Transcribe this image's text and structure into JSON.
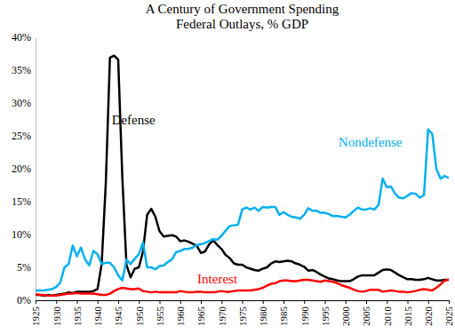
{
  "chart_data": {
    "type": "line",
    "title": "A Century of Government Spending",
    "subtitle": "Federal Outlays, % GDP",
    "x": [
      1925,
      1926,
      1927,
      1928,
      1929,
      1930,
      1931,
      1932,
      1933,
      1934,
      1935,
      1936,
      1937,
      1938,
      1939,
      1940,
      1941,
      1942,
      1943,
      1944,
      1945,
      1946,
      1947,
      1948,
      1949,
      1950,
      1951,
      1952,
      1953,
      1954,
      1955,
      1956,
      1957,
      1958,
      1959,
      1960,
      1961,
      1962,
      1963,
      1964,
      1965,
      1966,
      1967,
      1968,
      1969,
      1970,
      1971,
      1972,
      1973,
      1974,
      1975,
      1976,
      1977,
      1978,
      1979,
      1980,
      1981,
      1982,
      1983,
      1984,
      1985,
      1986,
      1987,
      1988,
      1989,
      1990,
      1991,
      1992,
      1993,
      1994,
      1995,
      1996,
      1997,
      1998,
      1999,
      2000,
      2001,
      2002,
      2003,
      2004,
      2005,
      2006,
      2007,
      2008,
      2009,
      2010,
      2011,
      2012,
      2013,
      2014,
      2015,
      2016,
      2017,
      2018,
      2019,
      2020,
      2021,
      2022,
      2023,
      2024,
      2025
    ],
    "xlim": [
      1925,
      2025
    ],
    "xticks": [
      1925,
      1930,
      1935,
      1940,
      1945,
      1950,
      1955,
      1960,
      1965,
      1970,
      1975,
      1980,
      1985,
      1990,
      1995,
      2000,
      2005,
      2010,
      2015,
      2020,
      2025
    ],
    "ylim": [
      0,
      40
    ],
    "yticks": [
      {
        "value": 0,
        "label": "0%"
      },
      {
        "value": 5,
        "label": "5%"
      },
      {
        "value": 10,
        "label": "10%"
      },
      {
        "value": 15,
        "label": "15%"
      },
      {
        "value": 20,
        "label": "20%"
      },
      {
        "value": 25,
        "label": "25%"
      },
      {
        "value": 30,
        "label": "30%"
      },
      {
        "value": 35,
        "label": "35%"
      },
      {
        "value": 40,
        "label": "40%"
      }
    ],
    "grid": false,
    "series": [
      {
        "name": "Defense",
        "color": "#000000",
        "values": [
          0.8,
          0.8,
          0.7,
          0.8,
          0.7,
          0.8,
          0.9,
          1.0,
          1.2,
          1.1,
          1.3,
          1.3,
          1.3,
          1.3,
          1.4,
          1.7,
          5.5,
          17.8,
          36.9,
          37.2,
          36.6,
          18.7,
          5.4,
          3.5,
          4.8,
          5.0,
          7.4,
          13.0,
          13.9,
          12.7,
          10.5,
          9.7,
          9.8,
          9.9,
          9.7,
          9.0,
          9.1,
          8.9,
          8.6,
          8.3,
          7.2,
          7.4,
          8.5,
          9.1,
          8.4,
          7.8,
          6.9,
          6.4,
          5.6,
          5.4,
          5.4,
          5.0,
          4.8,
          4.6,
          4.5,
          4.8,
          5.0,
          5.6,
          5.9,
          5.8,
          5.9,
          6.0,
          5.9,
          5.6,
          5.4,
          5.1,
          4.5,
          4.6,
          4.3,
          3.9,
          3.6,
          3.3,
          3.2,
          3.0,
          2.9,
          2.9,
          2.9,
          3.2,
          3.6,
          3.8,
          3.8,
          3.8,
          3.8,
          4.2,
          4.6,
          4.7,
          4.6,
          4.2,
          3.8,
          3.5,
          3.2,
          3.2,
          3.1,
          3.1,
          3.2,
          3.4,
          3.2,
          3.0,
          3.0,
          3.1,
          3.1
        ]
      },
      {
        "name": "Nondefense",
        "color": "#00b0f0",
        "values": [
          1.5,
          1.5,
          1.5,
          1.6,
          1.7,
          2.0,
          2.7,
          5.0,
          5.5,
          8.3,
          6.7,
          8.0,
          6.2,
          5.3,
          7.5,
          7.0,
          5.5,
          5.7,
          5.7,
          5.0,
          3.8,
          3.0,
          6.2,
          5.5,
          6.3,
          7.0,
          8.8,
          5.0,
          5.0,
          4.7,
          5.2,
          5.3,
          5.8,
          6.2,
          7.3,
          7.5,
          7.8,
          7.8,
          8.0,
          8.4,
          8.5,
          8.7,
          9.0,
          9.3,
          9.2,
          9.8,
          10.6,
          11.3,
          11.4,
          11.5,
          13.8,
          14.1,
          13.8,
          14.1,
          13.6,
          14.2,
          14.1,
          14.2,
          14.2,
          13.0,
          13.4,
          13.0,
          12.7,
          12.6,
          12.4,
          13.0,
          14.0,
          13.6,
          13.6,
          13.3,
          13.3,
          13.1,
          12.8,
          12.8,
          12.7,
          12.6,
          13.0,
          13.6,
          14.1,
          13.8,
          13.8,
          14.0,
          13.8,
          14.5,
          18.5,
          17.2,
          17.3,
          16.2,
          15.6,
          15.5,
          15.9,
          16.3,
          16.2,
          15.6,
          16.0,
          26.0,
          25.3,
          20.0,
          18.5,
          18.9,
          18.6
        ]
      },
      {
        "name": "Interest",
        "color": "#ff0000",
        "values": [
          0.9,
          0.8,
          0.8,
          0.7,
          0.7,
          0.7,
          0.8,
          0.9,
          1.0,
          1.0,
          1.1,
          1.0,
          1.0,
          1.0,
          1.0,
          0.9,
          0.8,
          0.8,
          1.0,
          1.4,
          1.7,
          1.9,
          1.8,
          1.7,
          1.7,
          1.8,
          1.4,
          1.3,
          1.2,
          1.3,
          1.2,
          1.2,
          1.2,
          1.2,
          1.2,
          1.4,
          1.3,
          1.2,
          1.2,
          1.3,
          1.3,
          1.2,
          1.2,
          1.2,
          1.3,
          1.4,
          1.3,
          1.3,
          1.4,
          1.5,
          1.5,
          1.5,
          1.5,
          1.6,
          1.7,
          1.9,
          2.2,
          2.5,
          2.6,
          2.9,
          3.0,
          3.0,
          2.9,
          2.9,
          3.0,
          3.1,
          3.1,
          3.0,
          2.9,
          2.8,
          3.0,
          2.9,
          2.8,
          2.6,
          2.3,
          2.1,
          1.9,
          1.6,
          1.4,
          1.3,
          1.4,
          1.6,
          1.6,
          1.6,
          1.3,
          1.4,
          1.5,
          1.4,
          1.3,
          1.3,
          1.2,
          1.3,
          1.4,
          1.6,
          1.7,
          1.6,
          1.5,
          1.9,
          2.4,
          3.0,
          3.1
        ]
      }
    ]
  }
}
